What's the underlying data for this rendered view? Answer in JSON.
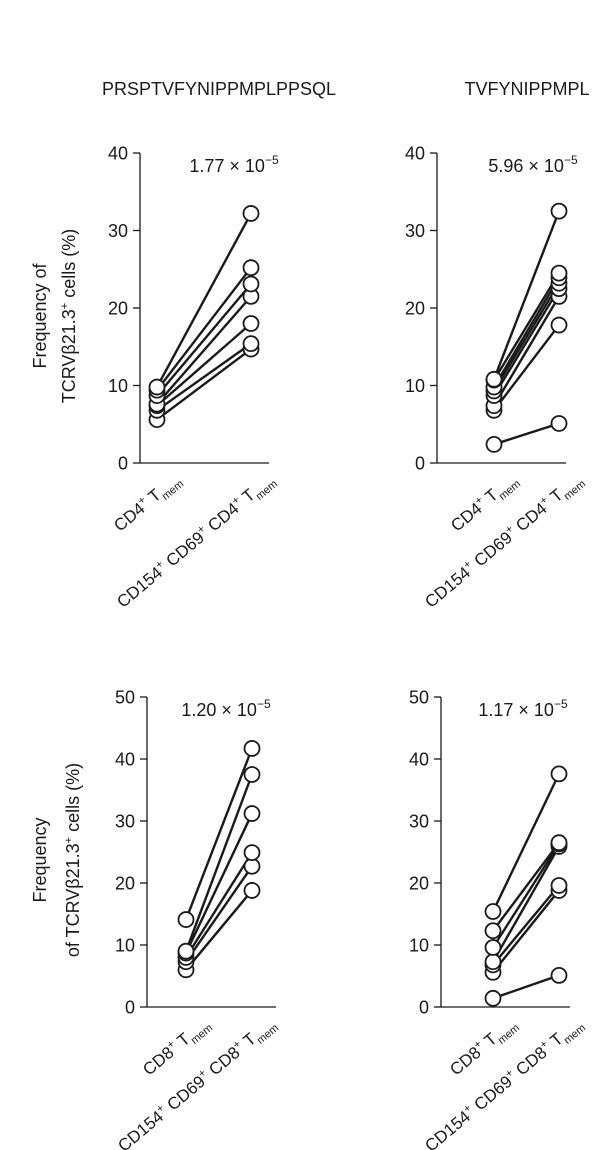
{
  "chart_data": [
    {
      "type": "paired-dot",
      "title": "PRSPTVFYNIPPMPLPPSQL",
      "p_value": {
        "mantissa": "1.77 × 10",
        "exponent": "−5"
      },
      "ylabel": {
        "line1": "Frequency of",
        "line2_prefix": "TCRVβ21.3",
        "line2_sup": "+",
        "line2_suffix": " cells (%)"
      },
      "ylim": [
        0,
        40
      ],
      "yticks": [
        "0",
        "10",
        "20",
        "30",
        "40"
      ],
      "categories": [
        {
          "base": "CD4",
          "sup": "+",
          "mid": " T",
          "sub": "mem"
        },
        {
          "base": "CD154",
          "sup": "+",
          "mid": " CD69",
          "sup2": "+",
          "mid2": " CD4",
          "sup3": "+",
          "mid3": " T",
          "sub": "mem"
        }
      ],
      "pairs": [
        [
          5.6,
          14.7
        ],
        [
          6.8,
          15.4
        ],
        [
          7.4,
          18.0
        ],
        [
          7.6,
          21.5
        ],
        [
          8.7,
          23.1
        ],
        [
          9.4,
          25.2
        ],
        [
          9.8,
          32.2
        ]
      ]
    },
    {
      "type": "paired-dot",
      "title": "TVFYNIPPMPL",
      "p_value": {
        "mantissa": "5.96 × 10",
        "exponent": "−5"
      },
      "ylabel": null,
      "ylim": [
        0,
        40
      ],
      "yticks": [
        "0",
        "10",
        "20",
        "30",
        "40"
      ],
      "categories": [
        {
          "base": "CD4",
          "sup": "+",
          "mid": " T",
          "sub": "mem"
        },
        {
          "base": "CD154",
          "sup": "+",
          "mid": " CD69",
          "sup2": "+",
          "mid2": " CD4",
          "sup3": "+",
          "mid3": " T",
          "sub": "mem"
        }
      ],
      "pairs": [
        [
          2.4,
          5.1
        ],
        [
          6.8,
          17.8
        ],
        [
          7.4,
          21.5
        ],
        [
          8.7,
          22.5
        ],
        [
          9.3,
          23.2
        ],
        [
          9.8,
          23.9
        ],
        [
          10.7,
          24.5
        ],
        [
          10.8,
          32.5
        ]
      ]
    },
    {
      "type": "paired-dot",
      "title": "",
      "p_value": {
        "mantissa": "1.20 × 10",
        "exponent": "−5"
      },
      "ylabel": {
        "line1": "Frequency",
        "line2_prefix": "of TCRVβ21.3",
        "line2_sup": "+",
        "line2_suffix": " cells (%)"
      },
      "ylim": [
        0,
        50
      ],
      "yticks": [
        "0",
        "10",
        "20",
        "30",
        "40",
        "50"
      ],
      "categories": [
        {
          "base": "CD8",
          "sup": "+",
          "mid": " T",
          "sub": "mem"
        },
        {
          "base": "CD154",
          "sup": "+",
          "mid": " CD69",
          "sup2": "+",
          "mid2": " CD8",
          "sup3": "+",
          "mid3": " T",
          "sub": "mem"
        }
      ],
      "pairs": [
        [
          6.0,
          18.8
        ],
        [
          7.3,
          22.7
        ],
        [
          8.0,
          24.9
        ],
        [
          8.7,
          31.2
        ],
        [
          9.0,
          37.5
        ],
        [
          14.1,
          41.7
        ]
      ]
    },
    {
      "type": "paired-dot",
      "title": "",
      "p_value": {
        "mantissa": "1.17 × 10",
        "exponent": "−5"
      },
      "ylabel": null,
      "ylim": [
        0,
        50
      ],
      "yticks": [
        "0",
        "10",
        "20",
        "30",
        "40",
        "50"
      ],
      "categories": [
        {
          "base": "CD8",
          "sup": "+",
          "mid": " T",
          "sub": "mem"
        },
        {
          "base": "CD154",
          "sup": "+",
          "mid": " CD69",
          "sup2": "+",
          "mid2": " CD8",
          "sup3": "+",
          "mid3": " T",
          "sub": "mem"
        }
      ],
      "pairs": [
        [
          1.4,
          5.1
        ],
        [
          5.6,
          18.8
        ],
        [
          6.8,
          19.6
        ],
        [
          7.3,
          25.9
        ],
        [
          9.6,
          26.3
        ],
        [
          12.3,
          26.5
        ],
        [
          15.4,
          37.6
        ]
      ]
    }
  ]
}
